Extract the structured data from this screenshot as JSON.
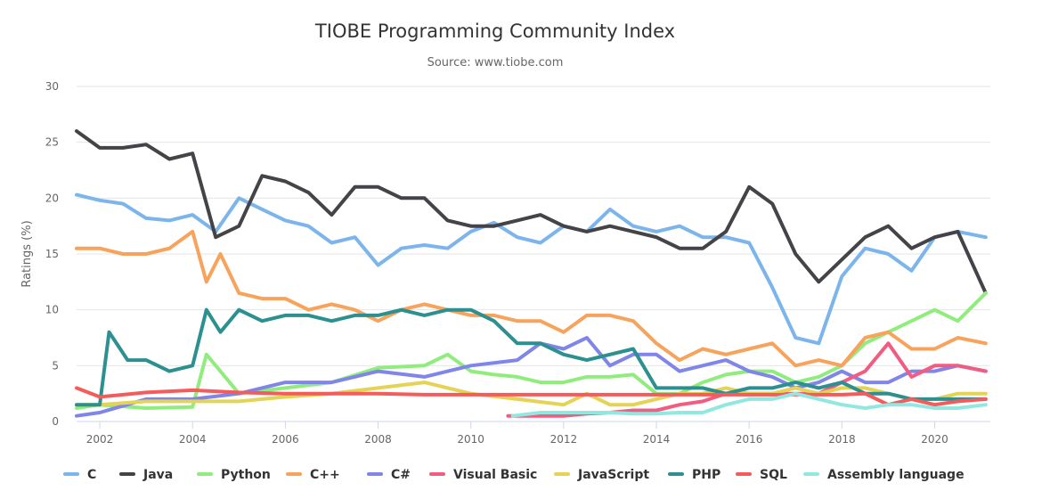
{
  "chart_data": {
    "type": "line",
    "title": "TIOBE Programming Community Index",
    "subtitle": "Source: www.tiobe.com",
    "ylabel": "Ratings (%)",
    "xlabel": "",
    "ylim": [
      0,
      30
    ],
    "xlim": [
      2001.5,
      2021.2
    ],
    "y_ticks": [
      0,
      5,
      10,
      15,
      20,
      25,
      30
    ],
    "x_ticks": [
      2002,
      2004,
      2006,
      2008,
      2010,
      2012,
      2014,
      2016,
      2018,
      2020
    ],
    "grid": true,
    "legend_position": "bottom",
    "series": [
      {
        "name": "C",
        "color": "#7cb5ec",
        "x": [
          2001.5,
          2002,
          2002.5,
          2003,
          2003.5,
          2004,
          2004.5,
          2005,
          2005.5,
          2006,
          2006.5,
          2007,
          2007.5,
          2008,
          2008.5,
          2009,
          2009.5,
          2010,
          2010.5,
          2011,
          2011.5,
          2012,
          2012.5,
          2013,
          2013.5,
          2014,
          2014.5,
          2015,
          2015.5,
          2016,
          2016.5,
          2017,
          2017.5,
          2018,
          2018.5,
          2019,
          2019.5,
          2020,
          2020.5,
          2021.1
        ],
        "y": [
          20.3,
          19.8,
          19.5,
          18.2,
          18.0,
          18.5,
          17.0,
          20.0,
          19.0,
          18.0,
          17.5,
          16.0,
          16.5,
          14.0,
          15.5,
          15.8,
          15.5,
          17.0,
          17.8,
          16.5,
          16.0,
          17.5,
          17.0,
          19.0,
          17.5,
          17.0,
          17.5,
          16.5,
          16.5,
          16.0,
          12.0,
          7.5,
          7.0,
          13.0,
          15.5,
          15.0,
          13.5,
          16.5,
          17.0,
          16.5
        ]
      },
      {
        "name": "Java",
        "color": "#434348",
        "x": [
          2001.5,
          2002,
          2002.5,
          2003,
          2003.5,
          2004,
          2004.5,
          2005,
          2005.5,
          2006,
          2006.5,
          2007,
          2007.5,
          2008,
          2008.5,
          2009,
          2009.5,
          2010,
          2010.5,
          2011,
          2011.5,
          2012,
          2012.5,
          2013,
          2013.5,
          2014,
          2014.5,
          2015,
          2015.5,
          2016,
          2016.5,
          2017,
          2017.5,
          2018,
          2018.5,
          2019,
          2019.5,
          2020,
          2020.5,
          2021.1
        ],
        "y": [
          26.0,
          24.5,
          24.5,
          24.8,
          23.5,
          24.0,
          16.5,
          17.5,
          22.0,
          21.5,
          20.5,
          18.5,
          21.0,
          21.0,
          20.0,
          20.0,
          18.0,
          17.5,
          17.5,
          18.0,
          18.5,
          17.5,
          17.0,
          17.5,
          17.0,
          16.5,
          15.5,
          15.5,
          17.0,
          21.0,
          19.5,
          15.0,
          12.5,
          14.5,
          16.5,
          17.5,
          15.5,
          16.5,
          17.0,
          11.5
        ]
      },
      {
        "name": "Python",
        "color": "#90ed7d",
        "x": [
          2001.5,
          2002,
          2003,
          2004,
          2004.3,
          2004.6,
          2005,
          2006,
          2007,
          2008,
          2009,
          2009.5,
          2010,
          2010.5,
          2011,
          2011.5,
          2012,
          2012.5,
          2013,
          2013.5,
          2014,
          2014.5,
          2015,
          2015.5,
          2016,
          2016.5,
          2017,
          2017.5,
          2018,
          2018.5,
          2019,
          2019.5,
          2020,
          2020.5,
          2021.1
        ],
        "y": [
          1.2,
          1.5,
          1.2,
          1.3,
          6.0,
          4.5,
          2.5,
          3.0,
          3.5,
          4.8,
          5.0,
          6.0,
          4.5,
          4.2,
          4.0,
          3.5,
          3.5,
          4.0,
          4.0,
          4.2,
          2.5,
          2.5,
          3.5,
          4.2,
          4.5,
          4.5,
          3.5,
          4.0,
          5.0,
          7.0,
          8.0,
          9.0,
          10.0,
          9.0,
          11.5
        ]
      },
      {
        "name": "C++",
        "color": "#f7a35c",
        "x": [
          2001.5,
          2002,
          2002.5,
          2003,
          2003.5,
          2004,
          2004.3,
          2004.6,
          2005,
          2005.5,
          2006,
          2006.5,
          2007,
          2007.5,
          2008,
          2008.5,
          2009,
          2009.5,
          2010,
          2010.5,
          2011,
          2011.5,
          2012,
          2012.5,
          2013,
          2013.5,
          2014,
          2014.5,
          2015,
          2015.5,
          2016,
          2016.5,
          2017,
          2017.5,
          2018,
          2018.5,
          2019,
          2019.5,
          2020,
          2020.5,
          2021.1
        ],
        "y": [
          15.5,
          15.5,
          15.0,
          15.0,
          15.5,
          17.0,
          12.5,
          15.0,
          11.5,
          11.0,
          11.0,
          10.0,
          10.5,
          10.0,
          9.0,
          10.0,
          10.5,
          10.0,
          9.5,
          9.5,
          9.0,
          9.0,
          8.0,
          9.5,
          9.5,
          9.0,
          7.0,
          5.5,
          6.5,
          6.0,
          6.5,
          7.0,
          5.0,
          5.5,
          5.0,
          7.5,
          8.0,
          6.5,
          6.5,
          7.5,
          7.0
        ]
      },
      {
        "name": "C#",
        "color": "#8085e9",
        "x": [
          2001.5,
          2002,
          2003,
          2004,
          2005,
          2006,
          2007,
          2008,
          2009,
          2010,
          2011,
          2011.5,
          2012,
          2012.5,
          2013,
          2013.5,
          2014,
          2014.5,
          2015,
          2015.5,
          2016,
          2016.5,
          2017,
          2017.5,
          2018,
          2018.5,
          2019,
          2019.5,
          2020,
          2020.5,
          2021.1
        ],
        "y": [
          0.5,
          0.8,
          2.0,
          2.0,
          2.5,
          3.5,
          3.5,
          4.5,
          4.0,
          5.0,
          5.5,
          7.0,
          6.5,
          7.5,
          5.0,
          6.0,
          6.0,
          4.5,
          5.0,
          5.5,
          4.5,
          4.0,
          3.0,
          3.5,
          4.5,
          3.5,
          3.5,
          4.5,
          4.5,
          5.0,
          4.5
        ]
      },
      {
        "name": "Visual Basic",
        "color": "#f15c80",
        "x": [
          2010.8,
          2011.5,
          2012,
          2012.5,
          2013,
          2013.5,
          2014,
          2014.5,
          2015,
          2015.5,
          2016,
          2016.5,
          2017,
          2017.5,
          2018,
          2018.5,
          2019,
          2019.5,
          2020,
          2020.5,
          2021.1
        ],
        "y": [
          0.5,
          0.5,
          0.5,
          0.7,
          0.8,
          1.0,
          1.0,
          1.5,
          1.8,
          2.5,
          2.5,
          2.5,
          2.5,
          2.5,
          3.5,
          4.5,
          7.0,
          4.0,
          5.0,
          5.0,
          4.5
        ]
      },
      {
        "name": "JavaScript",
        "color": "#e4d354",
        "x": [
          2001.5,
          2002,
          2003,
          2004,
          2005,
          2006,
          2007,
          2008,
          2009,
          2010,
          2011,
          2012,
          2012.5,
          2013,
          2013.5,
          2014,
          2014.5,
          2015,
          2015.5,
          2016,
          2016.5,
          2017,
          2017.5,
          2018,
          2018.5,
          2019,
          2019.5,
          2020,
          2020.5,
          2021.1
        ],
        "y": [
          1.5,
          1.5,
          1.8,
          1.8,
          1.8,
          2.2,
          2.5,
          3.0,
          3.5,
          2.5,
          2.0,
          1.5,
          2.5,
          1.5,
          1.5,
          2.0,
          2.5,
          2.5,
          3.0,
          2.5,
          2.5,
          3.0,
          2.5,
          3.0,
          3.0,
          2.5,
          2.0,
          2.0,
          2.5,
          2.5
        ]
      },
      {
        "name": "PHP",
        "color": "#2b908f",
        "x": [
          2001.5,
          2002,
          2002.2,
          2002.6,
          2003,
          2003.5,
          2004,
          2004.3,
          2004.6,
          2005,
          2005.5,
          2006,
          2006.5,
          2007,
          2007.5,
          2008,
          2008.5,
          2009,
          2009.5,
          2010,
          2010.5,
          2011,
          2011.5,
          2012,
          2012.5,
          2013,
          2013.5,
          2014,
          2014.5,
          2015,
          2015.5,
          2016,
          2016.5,
          2017,
          2017.5,
          2018,
          2018.5,
          2019,
          2019.5,
          2020,
          2020.5,
          2021.1
        ],
        "y": [
          1.5,
          1.5,
          8.0,
          5.5,
          5.5,
          4.5,
          5.0,
          10.0,
          8.0,
          10.0,
          9.0,
          9.5,
          9.5,
          9.0,
          9.5,
          9.5,
          10.0,
          9.5,
          10.0,
          10.0,
          9.0,
          7.0,
          7.0,
          6.0,
          5.5,
          6.0,
          6.5,
          3.0,
          3.0,
          3.0,
          2.5,
          3.0,
          3.0,
          3.5,
          3.0,
          3.5,
          2.5,
          2.5,
          2.0,
          2.0,
          2.0,
          2.0
        ]
      },
      {
        "name": "SQL",
        "color": "#f45b5b",
        "x": [
          2001.5,
          2002,
          2003,
          2004,
          2005,
          2006,
          2007,
          2008,
          2009,
          2010,
          2011,
          2012,
          2013,
          2014,
          2015,
          2016,
          2017,
          2017.5,
          2018,
          2018.5,
          2019,
          2019.5,
          2020,
          2020.5,
          2021.1
        ],
        "y": [
          3.0,
          2.2,
          2.6,
          2.8,
          2.6,
          2.5,
          2.5,
          2.5,
          2.4,
          2.4,
          2.4,
          2.4,
          2.4,
          2.4,
          2.4,
          2.4,
          2.4,
          2.4,
          2.4,
          2.5,
          1.5,
          2.0,
          1.5,
          1.8,
          2.0
        ]
      },
      {
        "name": "Assembly language",
        "color": "#91e8e1",
        "x": [
          2010.9,
          2011.5,
          2012,
          2012.5,
          2013,
          2013.5,
          2014,
          2014.5,
          2015,
          2015.5,
          2016,
          2016.5,
          2017,
          2017.5,
          2018,
          2018.5,
          2019,
          2019.5,
          2020,
          2020.5,
          2021.1
        ],
        "y": [
          0.5,
          0.8,
          0.8,
          0.8,
          0.8,
          0.7,
          0.7,
          0.8,
          0.8,
          1.5,
          2.0,
          2.0,
          2.5,
          2.0,
          1.5,
          1.2,
          1.5,
          1.5,
          1.2,
          1.2,
          1.5
        ]
      }
    ]
  }
}
